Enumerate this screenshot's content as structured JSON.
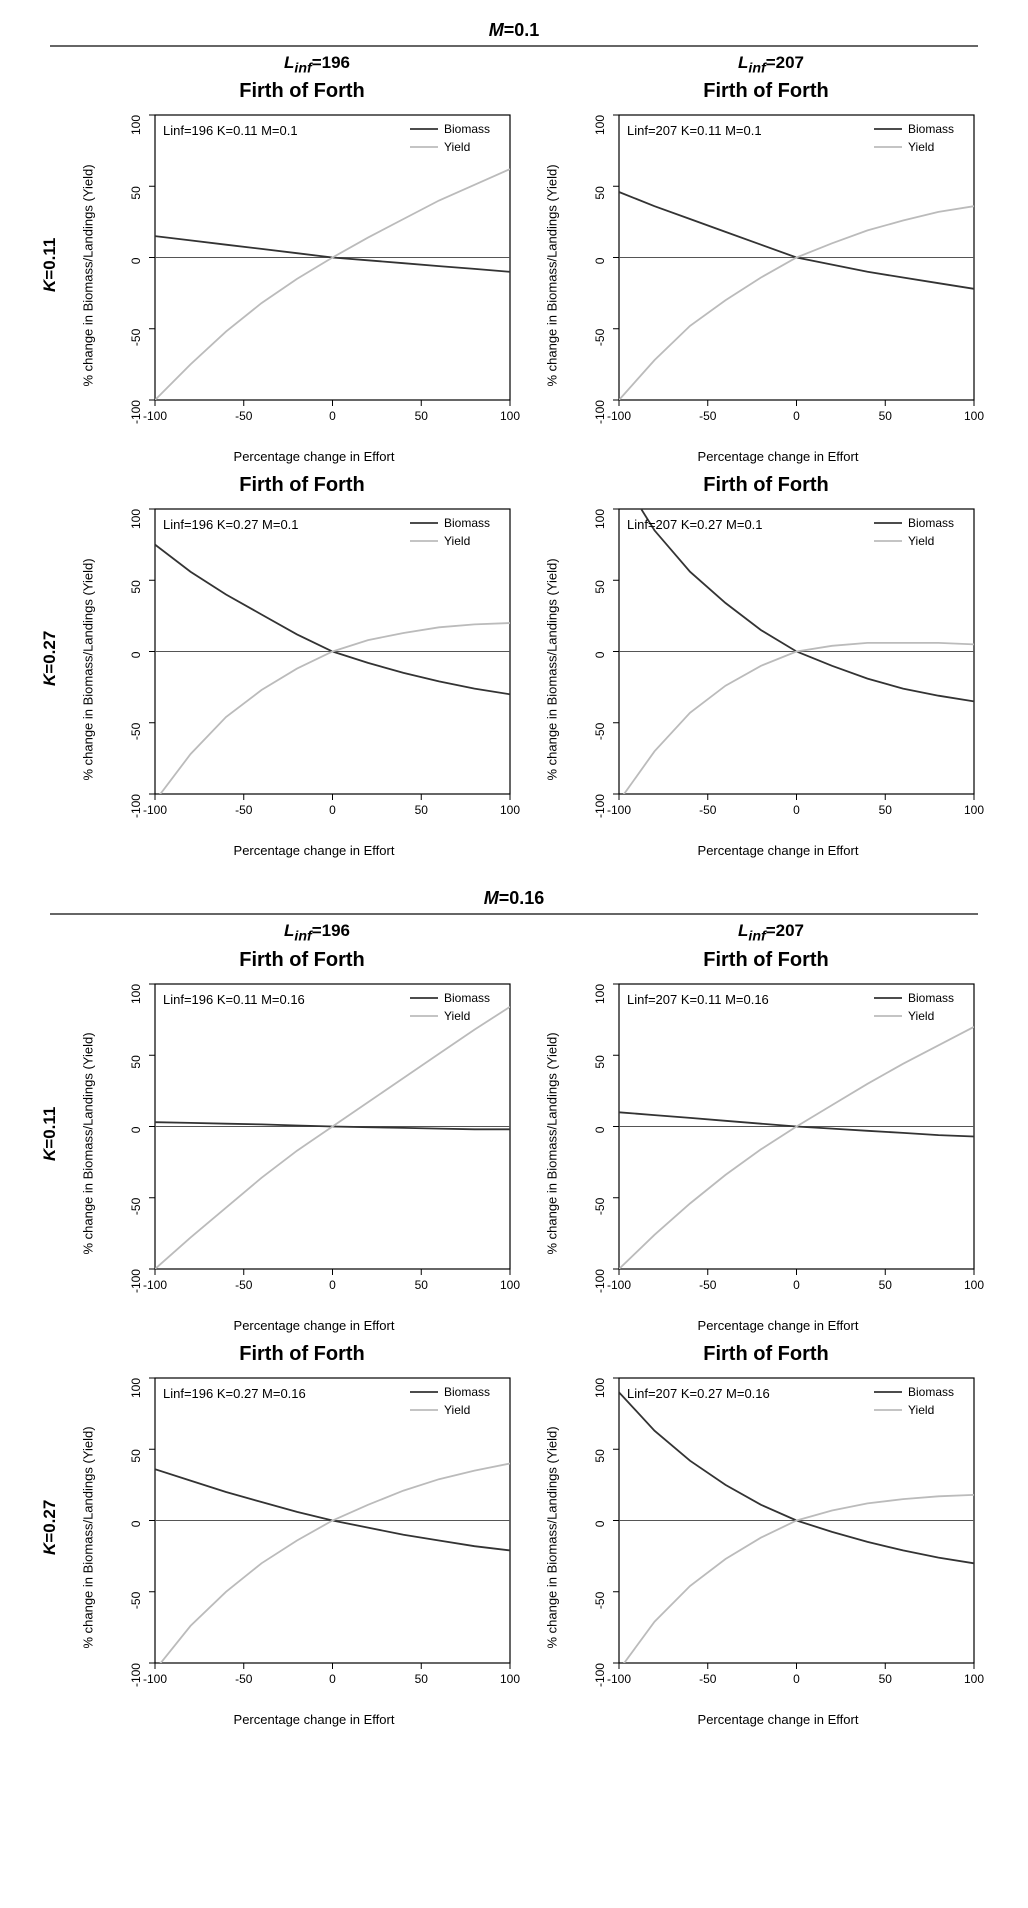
{
  "global": {
    "plot_title": "Firth of Forth",
    "x_axis_label": "Percentage change in Effort",
    "y_axis_label": "% change in Biomass/Landings (Yield)",
    "legend": {
      "biomass": "Biomass",
      "yield": "Yield"
    },
    "xlim": [
      -100,
      100
    ],
    "x_ticks": [
      -100,
      -50,
      0,
      50,
      100
    ],
    "ylim": [
      -100,
      100
    ],
    "y_ticks": [
      -100,
      -50,
      0,
      50,
      100
    ],
    "colors": {
      "biomass": "#333333",
      "yield": "#bbbbbb",
      "axis": "#000000",
      "zero_line": "#555555",
      "background": "#ffffff"
    },
    "line_width": 1.8,
    "title_fontsize": 20,
    "axis_label_fontsize": 13,
    "tick_fontsize": 12,
    "param_fontsize": 13
  },
  "sections": [
    {
      "m_label": "M=0.1",
      "col_labels": [
        "Linf=196",
        "Linf=207"
      ],
      "rows": [
        {
          "k_label": "K=0.11",
          "plots": [
            {
              "param_text": "Linf=196 K=0.11 M=0.1",
              "biomass": [
                [
                  -100,
                  15
                ],
                [
                  -80,
                  12
                ],
                [
                  -60,
                  9
                ],
                [
                  -40,
                  6
                ],
                [
                  -20,
                  3
                ],
                [
                  0,
                  0
                ],
                [
                  20,
                  -2
                ],
                [
                  40,
                  -4
                ],
                [
                  60,
                  -6
                ],
                [
                  80,
                  -8
                ],
                [
                  100,
                  -10
                ]
              ],
              "yield": [
                [
                  -100,
                  -100
                ],
                [
                  -80,
                  -75
                ],
                [
                  -60,
                  -52
                ],
                [
                  -40,
                  -32
                ],
                [
                  -20,
                  -15
                ],
                [
                  0,
                  0
                ],
                [
                  20,
                  14
                ],
                [
                  40,
                  27
                ],
                [
                  60,
                  40
                ],
                [
                  80,
                  51
                ],
                [
                  100,
                  62
                ]
              ]
            },
            {
              "param_text": "Linf=207 K=0.11 M=0.1",
              "biomass": [
                [
                  -100,
                  46
                ],
                [
                  -80,
                  36
                ],
                [
                  -60,
                  27
                ],
                [
                  -40,
                  18
                ],
                [
                  -20,
                  9
                ],
                [
                  0,
                  0
                ],
                [
                  20,
                  -5
                ],
                [
                  40,
                  -10
                ],
                [
                  60,
                  -14
                ],
                [
                  80,
                  -18
                ],
                [
                  100,
                  -22
                ]
              ],
              "yield": [
                [
                  -100,
                  -100
                ],
                [
                  -80,
                  -72
                ],
                [
                  -60,
                  -48
                ],
                [
                  -40,
                  -30
                ],
                [
                  -20,
                  -14
                ],
                [
                  0,
                  0
                ],
                [
                  20,
                  10
                ],
                [
                  40,
                  19
                ],
                [
                  60,
                  26
                ],
                [
                  80,
                  32
                ],
                [
                  100,
                  36
                ]
              ]
            }
          ]
        },
        {
          "k_label": "K=0.27",
          "plots": [
            {
              "param_text": "Linf=196 K=0.27 M=0.1",
              "biomass": [
                [
                  -100,
                  75
                ],
                [
                  -80,
                  56
                ],
                [
                  -60,
                  40
                ],
                [
                  -40,
                  26
                ],
                [
                  -20,
                  12
                ],
                [
                  0,
                  0
                ],
                [
                  20,
                  -8
                ],
                [
                  40,
                  -15
                ],
                [
                  60,
                  -21
                ],
                [
                  80,
                  -26
                ],
                [
                  100,
                  -30
                ]
              ],
              "yield": [
                [
                  -100,
                  -105
                ],
                [
                  -80,
                  -72
                ],
                [
                  -60,
                  -46
                ],
                [
                  -40,
                  -27
                ],
                [
                  -20,
                  -12
                ],
                [
                  0,
                  0
                ],
                [
                  20,
                  8
                ],
                [
                  40,
                  13
                ],
                [
                  60,
                  17
                ],
                [
                  80,
                  19
                ],
                [
                  100,
                  20
                ]
              ]
            },
            {
              "param_text": "Linf=207 K=0.27 M=0.1",
              "biomass": [
                [
                  -100,
                  125
                ],
                [
                  -80,
                  85
                ],
                [
                  -60,
                  56
                ],
                [
                  -40,
                  34
                ],
                [
                  -20,
                  15
                ],
                [
                  0,
                  0
                ],
                [
                  20,
                  -10
                ],
                [
                  40,
                  -19
                ],
                [
                  60,
                  -26
                ],
                [
                  80,
                  -31
                ],
                [
                  100,
                  -35
                ]
              ],
              "yield": [
                [
                  -100,
                  -105
                ],
                [
                  -80,
                  -70
                ],
                [
                  -60,
                  -43
                ],
                [
                  -40,
                  -24
                ],
                [
                  -20,
                  -10
                ],
                [
                  0,
                  0
                ],
                [
                  20,
                  4
                ],
                [
                  40,
                  6
                ],
                [
                  60,
                  6
                ],
                [
                  80,
                  6
                ],
                [
                  100,
                  5
                ]
              ]
            }
          ]
        }
      ]
    },
    {
      "m_label": "M=0.16",
      "col_labels": [
        "Linf=196",
        "Linf=207"
      ],
      "rows": [
        {
          "k_label": "K=0.11",
          "plots": [
            {
              "param_text": "Linf=196 K=0.11 M=0.16",
              "biomass": [
                [
                  -100,
                  3
                ],
                [
                  -80,
                  2.5
                ],
                [
                  -60,
                  2
                ],
                [
                  -40,
                  1.5
                ],
                [
                  -20,
                  0.7
                ],
                [
                  0,
                  0
                ],
                [
                  20,
                  -0.5
                ],
                [
                  40,
                  -1
                ],
                [
                  60,
                  -1.5
                ],
                [
                  80,
                  -2
                ],
                [
                  100,
                  -2
                ]
              ],
              "yield": [
                [
                  -100,
                  -100
                ],
                [
                  -80,
                  -78
                ],
                [
                  -60,
                  -57
                ],
                [
                  -40,
                  -36
                ],
                [
                  -20,
                  -17
                ],
                [
                  0,
                  0
                ],
                [
                  20,
                  17
                ],
                [
                  40,
                  34
                ],
                [
                  60,
                  51
                ],
                [
                  80,
                  68
                ],
                [
                  100,
                  84
                ]
              ]
            },
            {
              "param_text": "Linf=207 K=0.11 M=0.16",
              "biomass": [
                [
                  -100,
                  10
                ],
                [
                  -80,
                  8
                ],
                [
                  -60,
                  6
                ],
                [
                  -40,
                  4
                ],
                [
                  -20,
                  2
                ],
                [
                  0,
                  0
                ],
                [
                  20,
                  -1.5
                ],
                [
                  40,
                  -3
                ],
                [
                  60,
                  -4.5
                ],
                [
                  80,
                  -6
                ],
                [
                  100,
                  -7
                ]
              ],
              "yield": [
                [
                  -100,
                  -100
                ],
                [
                  -80,
                  -76
                ],
                [
                  -60,
                  -54
                ],
                [
                  -40,
                  -34
                ],
                [
                  -20,
                  -16
                ],
                [
                  0,
                  0
                ],
                [
                  20,
                  15
                ],
                [
                  40,
                  30
                ],
                [
                  60,
                  44
                ],
                [
                  80,
                  57
                ],
                [
                  100,
                  70
                ]
              ]
            }
          ]
        },
        {
          "k_label": "K=0.27",
          "plots": [
            {
              "param_text": "Linf=196 K=0.27 M=0.16",
              "biomass": [
                [
                  -100,
                  36
                ],
                [
                  -80,
                  28
                ],
                [
                  -60,
                  20
                ],
                [
                  -40,
                  13
                ],
                [
                  -20,
                  6
                ],
                [
                  0,
                  0
                ],
                [
                  20,
                  -5
                ],
                [
                  40,
                  -10
                ],
                [
                  60,
                  -14
                ],
                [
                  80,
                  -18
                ],
                [
                  100,
                  -21
                ]
              ],
              "yield": [
                [
                  -100,
                  -105
                ],
                [
                  -80,
                  -74
                ],
                [
                  -60,
                  -50
                ],
                [
                  -40,
                  -30
                ],
                [
                  -20,
                  -14
                ],
                [
                  0,
                  0
                ],
                [
                  20,
                  11
                ],
                [
                  40,
                  21
                ],
                [
                  60,
                  29
                ],
                [
                  80,
                  35
                ],
                [
                  100,
                  40
                ]
              ]
            },
            {
              "param_text": "Linf=207 K=0.27 M=0.16",
              "biomass": [
                [
                  -100,
                  90
                ],
                [
                  -80,
                  63
                ],
                [
                  -60,
                  42
                ],
                [
                  -40,
                  25
                ],
                [
                  -20,
                  11
                ],
                [
                  0,
                  0
                ],
                [
                  20,
                  -8
                ],
                [
                  40,
                  -15
                ],
                [
                  60,
                  -21
                ],
                [
                  80,
                  -26
                ],
                [
                  100,
                  -30
                ]
              ],
              "yield": [
                [
                  -100,
                  -105
                ],
                [
                  -80,
                  -71
                ],
                [
                  -60,
                  -46
                ],
                [
                  -40,
                  -27
                ],
                [
                  -20,
                  -12
                ],
                [
                  0,
                  0
                ],
                [
                  20,
                  7
                ],
                [
                  40,
                  12
                ],
                [
                  60,
                  15
                ],
                [
                  80,
                  17
                ],
                [
                  100,
                  18
                ]
              ]
            }
          ]
        }
      ]
    }
  ]
}
